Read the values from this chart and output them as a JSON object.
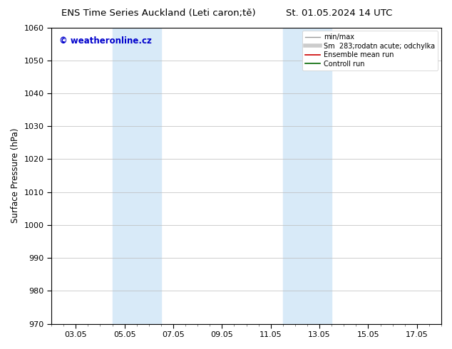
{
  "title_left": "ENS Time Series Auckland (Leti caron;tě)",
  "title_right": "St. 01.05.2024 14 UTC",
  "ylabel": "Surface Pressure (hPa)",
  "ylim": [
    970,
    1060
  ],
  "yticks": [
    970,
    980,
    990,
    1000,
    1010,
    1020,
    1030,
    1040,
    1050,
    1060
  ],
  "xtick_labels": [
    "03.05",
    "05.05",
    "07.05",
    "09.05",
    "11.05",
    "13.05",
    "15.05",
    "17.05"
  ],
  "xtick_positions": [
    2,
    4,
    6,
    8,
    10,
    12,
    14,
    16
  ],
  "xlim": [
    1,
    17
  ],
  "bg_color": "#ffffff",
  "plot_bg_color": "#ffffff",
  "shaded_regions": [
    {
      "xmin": 3.5,
      "xmax": 5.5,
      "color": "#d8eaf8"
    },
    {
      "xmin": 10.5,
      "xmax": 12.5,
      "color": "#d8eaf8"
    }
  ],
  "watermark_text": "© weatheronline.cz",
  "watermark_color": "#0000cc",
  "legend_entries": [
    {
      "label": "min/max",
      "color": "#999999",
      "lw": 1.0,
      "style": "-"
    },
    {
      "label": "Sm  283;rodatn acute; odchylka",
      "color": "#cccccc",
      "lw": 4,
      "style": "-"
    },
    {
      "label": "Ensemble mean run",
      "color": "#cc0000",
      "lw": 1.2,
      "style": "-"
    },
    {
      "label": "Controll run",
      "color": "#006600",
      "lw": 1.2,
      "style": "-"
    }
  ],
  "grid_color": "#bbbbbb",
  "grid_lw": 0.5,
  "minor_tick_count": 4,
  "title_fontsize": 9.5,
  "ylabel_fontsize": 8.5,
  "tick_fontsize": 8
}
